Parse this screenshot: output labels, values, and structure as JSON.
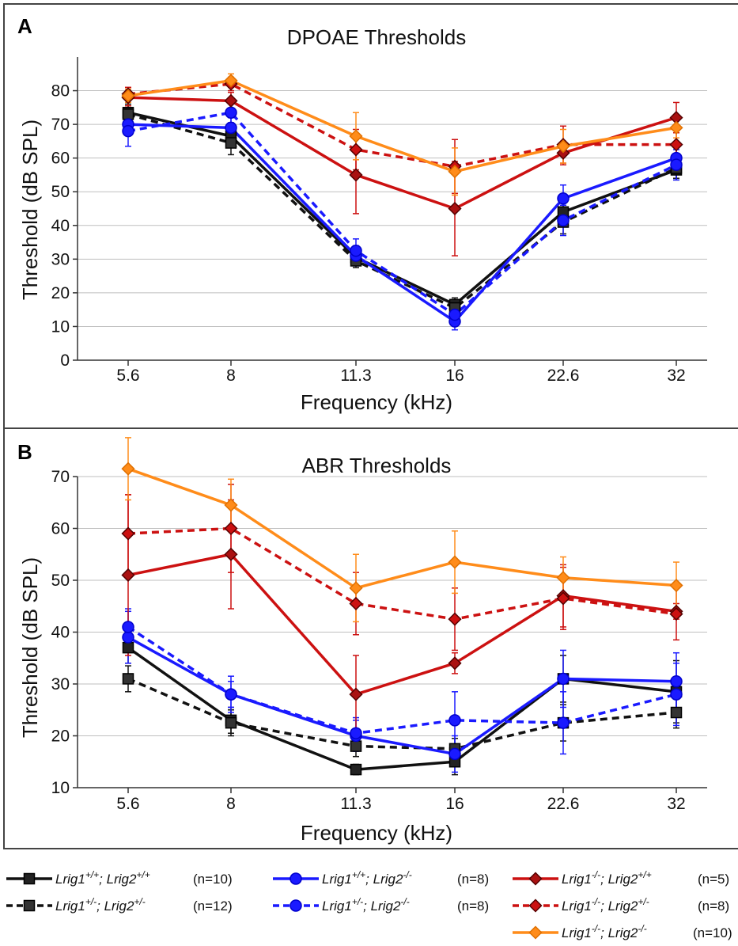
{
  "colors": {
    "black": "#111111",
    "blue": "#1a1aff",
    "red": "#cc1111",
    "orange": "#ff8c1a",
    "grid": "#bfbfbf",
    "frame": "#444444"
  },
  "chart_data": [
    {
      "panel": "A",
      "type": "line",
      "title": "DPOAE Thresholds",
      "xlabel": "Frequency (kHz)",
      "ylabel": "Threshold (dB SPL)",
      "categories": [
        "5.6",
        "8",
        "11.3",
        "16",
        "22.6",
        "32"
      ],
      "ylim": [
        0,
        90
      ],
      "yticks": [
        "0",
        "10",
        "20",
        "30",
        "40",
        "50",
        "60",
        "70",
        "80"
      ],
      "grid": true,
      "series": [
        {
          "key": "wt",
          "color": "black",
          "dashed": false,
          "marker": "square",
          "values": [
            73.5,
            66.5,
            30.5,
            16.5,
            44,
            56.5
          ],
          "err": [
            2.5,
            3,
            2,
            2,
            3,
            3
          ]
        },
        {
          "key": "het",
          "color": "black",
          "dashed": true,
          "marker": "square",
          "values": [
            73,
            64.5,
            29.5,
            15.5,
            41,
            57
          ],
          "err": [
            2.5,
            3.5,
            2,
            1.5,
            3.5,
            3
          ]
        },
        {
          "key": "l2ko",
          "color": "blue",
          "dashed": false,
          "marker": "circle",
          "values": [
            70,
            69,
            31,
            11.5,
            48,
            60
          ],
          "err": [
            3,
            3,
            3,
            2.5,
            4,
            4
          ]
        },
        {
          "key": "l2ko_het",
          "color": "blue",
          "dashed": true,
          "marker": "circle",
          "values": [
            68,
            73.5,
            32.5,
            13.5,
            41.5,
            58
          ],
          "err": [
            4.5,
            3,
            3.5,
            3,
            4.5,
            4.5
          ]
        },
        {
          "key": "l1ko",
          "color": "red",
          "dashed": false,
          "marker": "diamond",
          "values": [
            78,
            77,
            55,
            45,
            61.5,
            72
          ],
          "err": [
            2.5,
            2.5,
            11.5,
            14,
            3.5,
            4.5
          ]
        },
        {
          "key": "l1ko_het",
          "color": "red",
          "dashed": true,
          "marker": "diamond",
          "values": [
            79,
            82,
            62.5,
            57.5,
            64,
            64
          ],
          "err": [
            2,
            2,
            6,
            8,
            5.5,
            3.5
          ]
        },
        {
          "key": "dko",
          "color": "orange",
          "dashed": false,
          "marker": "diamond",
          "values": [
            78.5,
            83,
            66.5,
            56,
            63.5,
            69
          ],
          "err": [
            2,
            2,
            7,
            7,
            5,
            3
          ]
        }
      ]
    },
    {
      "panel": "B",
      "type": "line",
      "title": "ABR Thresholds",
      "xlabel": "Frequency (kHz)",
      "ylabel": "Threshold (dB SPL)",
      "categories": [
        "5.6",
        "8",
        "11.3",
        "16",
        "22.6",
        "32"
      ],
      "ylim": [
        10,
        70
      ],
      "yticks": [
        "10",
        "20",
        "30",
        "40",
        "50",
        "60",
        "70"
      ],
      "grid": true,
      "series": [
        {
          "key": "wt",
          "color": "black",
          "dashed": false,
          "marker": "square",
          "values": [
            37,
            23,
            13.5,
            15,
            31,
            28.5
          ],
          "err": [
            3,
            2.5,
            1,
            2.5,
            4.5,
            6
          ]
        },
        {
          "key": "het",
          "color": "black",
          "dashed": true,
          "marker": "square",
          "values": [
            31,
            22.5,
            18,
            17.5,
            22.5,
            24.5
          ],
          "err": [
            2.5,
            2.5,
            2,
            2,
            3.5,
            3
          ]
        },
        {
          "key": "l2ko",
          "color": "blue",
          "dashed": false,
          "marker": "circle",
          "values": [
            39,
            28,
            20,
            16.5,
            31,
            30.5
          ],
          "err": [
            5,
            3.5,
            3,
            3.5,
            5.5,
            5.5
          ]
        },
        {
          "key": "l2ko_het",
          "color": "blue",
          "dashed": true,
          "marker": "circle",
          "values": [
            41,
            28,
            20.5,
            23,
            22.5,
            28
          ],
          "err": [
            3.5,
            2.5,
            3,
            5.5,
            6,
            6
          ]
        },
        {
          "key": "l1ko",
          "color": "red",
          "dashed": false,
          "marker": "diamond",
          "values": [
            51,
            55,
            28,
            34,
            47,
            44
          ],
          "err": [
            15.5,
            10.5,
            7.5,
            2,
            6,
            1.5
          ]
        },
        {
          "key": "l1ko_het",
          "color": "red",
          "dashed": true,
          "marker": "diamond",
          "values": [
            59,
            60,
            45.5,
            42.5,
            46.5,
            43.5
          ],
          "err": [
            7.5,
            8.5,
            6,
            6,
            6,
            5
          ]
        },
        {
          "key": "dko",
          "color": "orange",
          "dashed": false,
          "marker": "diamond",
          "values": [
            71.5,
            64.5,
            48.5,
            53.5,
            50.5,
            49
          ],
          "err": [
            6,
            5,
            6.5,
            6,
            4,
            4.5
          ]
        }
      ]
    }
  ],
  "legend": [
    {
      "key": "wt",
      "g1": "Lrig1",
      "s1": "+/+",
      "g2": "Lrig2",
      "s2": "+/+",
      "n": "(n=10)"
    },
    {
      "key": "het",
      "g1": "Lrig1",
      "s1": "+/-",
      "g2": "Lrig2",
      "s2": "+/-",
      "n": "(n=12)"
    },
    {
      "key": "l2ko",
      "g1": "Lrig1",
      "s1": "+/+",
      "g2": "Lrig2",
      "s2": "-/-",
      "n": "(n=8)"
    },
    {
      "key": "l2ko_het",
      "g1": "Lrig1",
      "s1": "+/-",
      "g2": "Lrig2",
      "s2": "-/-",
      "n": "(n=8)"
    },
    {
      "key": "l1ko",
      "g1": "Lrig1",
      "s1": "-/-",
      "g2": "Lrig2",
      "s2": "+/+",
      "n": "(n=5)"
    },
    {
      "key": "l1ko_het",
      "g1": "Lrig1",
      "s1": "-/-",
      "g2": "Lrig2",
      "s2": "+/-",
      "n": "(n=8)"
    },
    {
      "key": "dko",
      "g1": "Lrig1",
      "s1": "-/-",
      "g2": "Lrig2",
      "s2": "-/-",
      "n": "(n=10)"
    }
  ]
}
